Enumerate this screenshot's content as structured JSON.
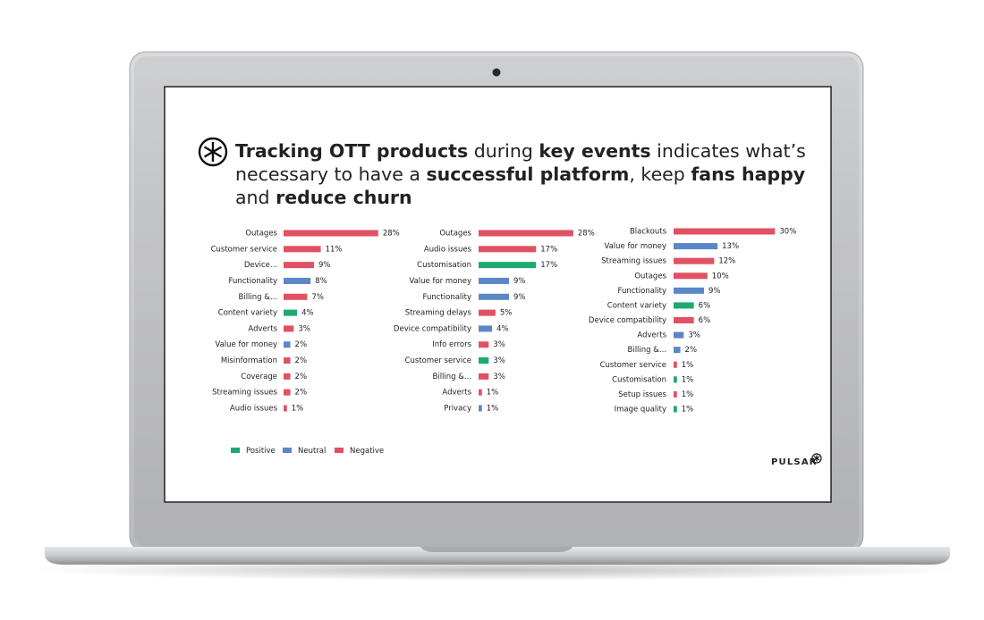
{
  "header": {
    "title_lines": [
      [
        {
          "text": "Tracking OTT products",
          "bold": true
        },
        {
          "text": " during ",
          "bold": false
        },
        {
          "text": "key events",
          "bold": true
        },
        {
          "text": " indicates what’s",
          "bold": false
        }
      ],
      [
        {
          "text": "necessary to have a ",
          "bold": false
        },
        {
          "text": "successful platform",
          "bold": true
        },
        {
          "text": ", keep ",
          "bold": false
        },
        {
          "text": "fans happy",
          "bold": true
        }
      ],
      [
        {
          "text": "and ",
          "bold": false
        },
        {
          "text": "reduce churn",
          "bold": true
        }
      ]
    ]
  },
  "chart_data": [
    {
      "type": "bar",
      "orientation": "horizontal",
      "categories": [
        "Outages",
        "Customer service",
        "Device...",
        "Functionality",
        "Billing &...",
        "Content variety",
        "Adverts",
        "Value for money",
        "Misinformation",
        "Coverage",
        "Streaming issues",
        "Audio issues"
      ],
      "values": [
        28,
        11,
        9,
        8,
        7,
        4,
        3,
        2,
        2,
        2,
        2,
        1
      ],
      "value_labels": [
        "28%",
        "11%",
        "9%",
        "8%",
        "7%",
        "4%",
        "3%",
        "2%",
        "2%",
        "2%",
        "2%",
        "1%"
      ],
      "colors": [
        "#e05263",
        "#e05263",
        "#e05263",
        "#5b87c7",
        "#e05263",
        "#1fa971",
        "#e05263",
        "#5b87c7",
        "#e05263",
        "#e05263",
        "#e05263",
        "#e05263"
      ]
    },
    {
      "type": "bar",
      "orientation": "horizontal",
      "categories": [
        "Outages",
        "Audio issues",
        "Customisation",
        "Value for money",
        "Functionality",
        "Streaming delays",
        "Device compatibility",
        "Info errors",
        "Customer service",
        "Billing &...",
        "Adverts",
        "Privacy"
      ],
      "values": [
        28,
        17,
        17,
        9,
        9,
        5,
        4,
        3,
        3,
        3,
        1,
        1
      ],
      "value_labels": [
        "28%",
        "17%",
        "17%",
        "9%",
        "9%",
        "5%",
        "4%",
        "3%",
        "3%",
        "3%",
        "1%",
        "1%"
      ],
      "colors": [
        "#e05263",
        "#e05263",
        "#1fa971",
        "#5b87c7",
        "#5b87c7",
        "#e05263",
        "#5b87c7",
        "#e05263",
        "#1fa971",
        "#e05263",
        "#e05263",
        "#5b87c7"
      ]
    },
    {
      "type": "bar",
      "orientation": "horizontal",
      "categories": [
        "Blackouts",
        "Value for money",
        "Streaming issues",
        "Outages",
        "Functionality",
        "Content variety",
        "Device compatibility",
        "Adverts",
        "Billing &...",
        "Customer service",
        "Customisation",
        "Setup issues",
        "Image quality"
      ],
      "values": [
        30,
        13,
        12,
        10,
        9,
        6,
        6,
        3,
        2,
        1,
        1,
        1,
        1
      ],
      "value_labels": [
        "30%",
        "13%",
        "12%",
        "10%",
        "9%",
        "6%",
        "6%",
        "3%",
        "2%",
        "1%",
        "1%",
        "1%",
        "1%"
      ],
      "colors": [
        "#e05263",
        "#5b87c7",
        "#e05263",
        "#e05263",
        "#5b87c7",
        "#1fa971",
        "#e05263",
        "#5b87c7",
        "#5b87c7",
        "#e05263",
        "#1fa971",
        "#e05263",
        "#1fa971"
      ]
    }
  ],
  "legend": [
    {
      "name": "Positive",
      "color": "#1fa971"
    },
    {
      "name": "Neutral",
      "color": "#5b87c7"
    },
    {
      "name": "Negative",
      "color": "#e05263"
    }
  ],
  "brand": "PULSAR"
}
